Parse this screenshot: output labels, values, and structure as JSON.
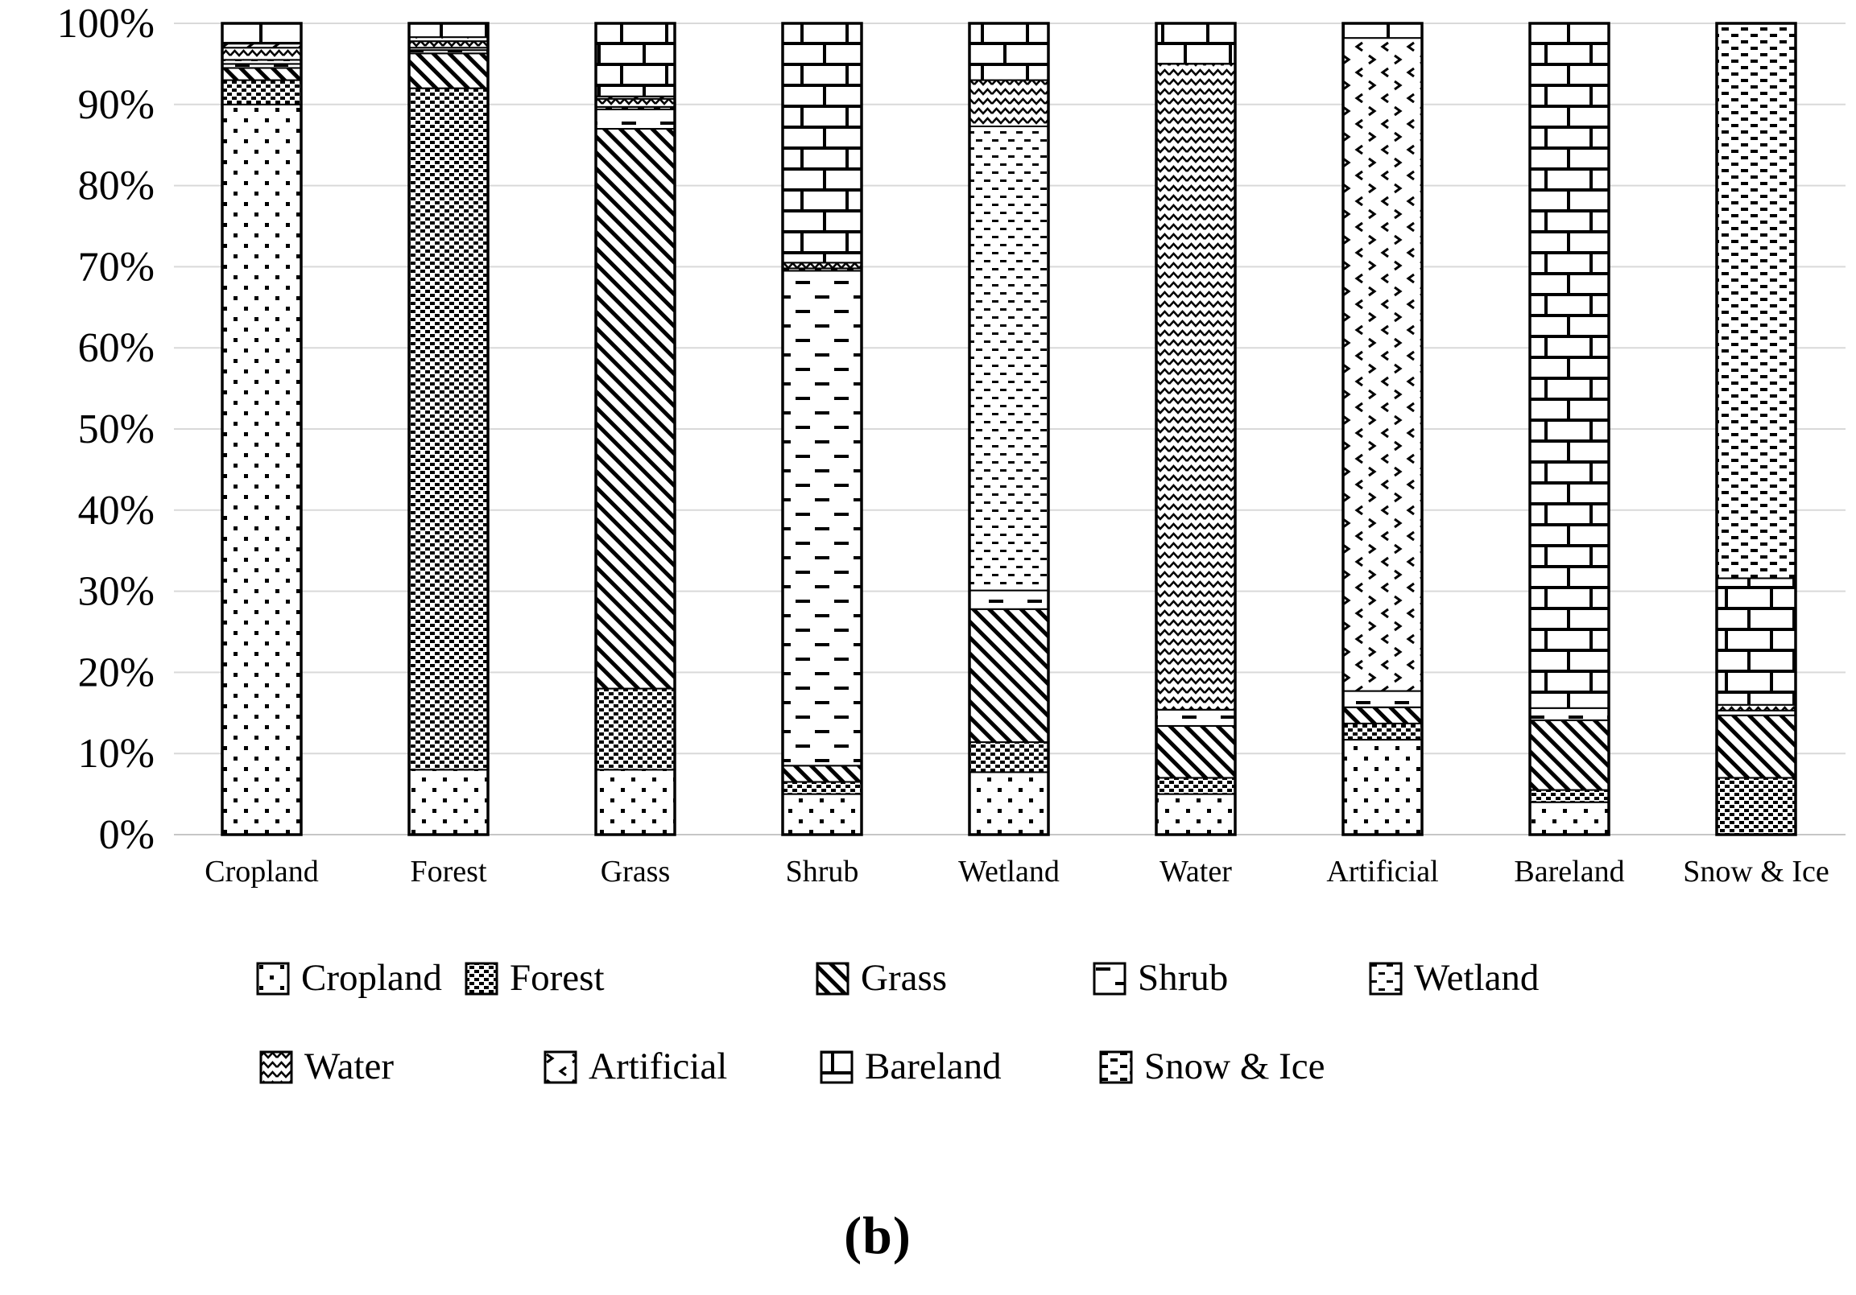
{
  "figure": {
    "caption": "(b)"
  },
  "colors": {
    "foreground": "#000000",
    "background": "#ffffff",
    "gridline": "#d9d9d9",
    "axis_line": "#c6c6c6"
  },
  "chart_data": {
    "type": "bar",
    "stacked": true,
    "percent_stacked": true,
    "title": "",
    "xlabel": "",
    "ylabel": "",
    "ylim": [
      0,
      100
    ],
    "grid": true,
    "legend_position": "bottom",
    "y_ticks": [
      "0%",
      "10%",
      "20%",
      "30%",
      "40%",
      "50%",
      "60%",
      "70%",
      "80%",
      "90%",
      "100%"
    ],
    "categories": [
      "Cropland",
      "Forest",
      "Grass",
      "Shrub",
      "Wetland",
      "Water",
      "Artificial",
      "Bareland",
      "Snow & Ice"
    ],
    "series": [
      {
        "name": "Cropland",
        "pattern": "dots-sparse",
        "values": [
          90,
          8,
          8,
          5,
          7.7,
          5,
          11.7,
          4,
          0
        ]
      },
      {
        "name": "Forest",
        "pattern": "dots-dense",
        "values": [
          3,
          84,
          10,
          1.5,
          3.7,
          2,
          2,
          1.5,
          7
        ]
      },
      {
        "name": "Grass",
        "pattern": "diagonal",
        "values": [
          1.5,
          4.3,
          69,
          2,
          16.4,
          6.4,
          2,
          8.6,
          7.7
        ]
      },
      {
        "name": "Shrub",
        "pattern": "dash-horizontal",
        "values": [
          0.5,
          0.4,
          2.4,
          61,
          2.3,
          2,
          2,
          1.5,
          0.6
        ]
      },
      {
        "name": "Wetland",
        "pattern": "dots-diagonal",
        "values": [
          0.5,
          0.3,
          0.3,
          0.3,
          57.2,
          0,
          0,
          0,
          0
        ]
      },
      {
        "name": "Water",
        "pattern": "zigzag",
        "values": [
          1.5,
          0.8,
          1,
          0.7,
          5.7,
          79.6,
          0,
          0,
          0.7
        ]
      },
      {
        "name": "Artificial",
        "pattern": "chevron",
        "values": [
          0.5,
          0.5,
          0.3,
          0,
          0,
          0,
          80.5,
          0,
          0
        ]
      },
      {
        "name": "Bareland",
        "pattern": "brick",
        "values": [
          2.5,
          1.7,
          9,
          29.5,
          7,
          5,
          1.8,
          84.4,
          15.6
        ]
      },
      {
        "name": "Snow & Ice",
        "pattern": "dash-vertical",
        "values": [
          0,
          0,
          0,
          0,
          0,
          0,
          0,
          0,
          68.4
        ]
      }
    ],
    "legend_rows": [
      [
        "Cropland",
        "Forest",
        "Grass",
        "Shrub",
        "Wetland"
      ],
      [
        "Water",
        "Artificial",
        "Bareland",
        "Snow & Ice"
      ]
    ]
  }
}
